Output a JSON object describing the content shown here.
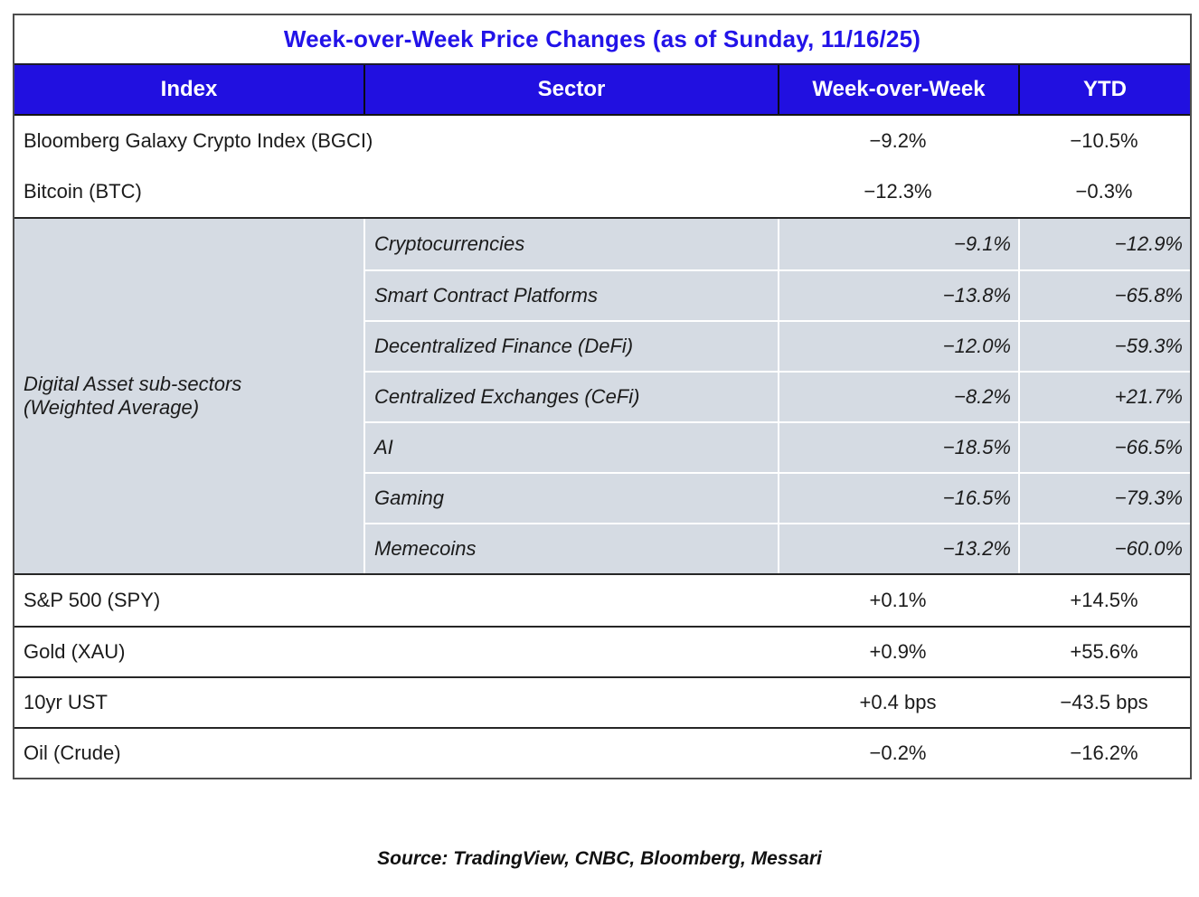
{
  "title": "Week-over-Week Price Changes (as of Sunday, 11/16/25)",
  "columns": [
    "Index",
    "Sector",
    "Week-over-Week",
    "YTD"
  ],
  "groups": {
    "top": [
      {
        "index": "Bloomberg Galaxy Crypto Index (BGCI)",
        "wow": "−9.2%",
        "ytd": "−10.5%"
      },
      {
        "index": "Bitcoin (BTC)",
        "wow": "−12.3%",
        "ytd": "−0.3%"
      }
    ],
    "digital": {
      "index_label": "Digital Asset sub-sectors\n(Weighted Average)",
      "rows": [
        {
          "sector": "Cryptocurrencies",
          "wow": "−9.1%",
          "ytd": "−12.9%"
        },
        {
          "sector": "Smart Contract Platforms",
          "wow": "−13.8%",
          "ytd": "−65.8%"
        },
        {
          "sector": "Decentralized Finance (DeFi)",
          "wow": "−12.0%",
          "ytd": "−59.3%"
        },
        {
          "sector": "Centralized Exchanges (CeFi)",
          "wow": "−8.2%",
          "ytd": "+21.7%"
        },
        {
          "sector": "AI",
          "wow": "−18.5%",
          "ytd": "−66.5%"
        },
        {
          "sector": "Gaming",
          "wow": "−16.5%",
          "ytd": "−79.3%"
        },
        {
          "sector": "Memecoins",
          "wow": "−13.2%",
          "ytd": "−60.0%"
        }
      ]
    },
    "bottom": [
      {
        "index": "S&P 500 (SPY)",
        "wow": "+0.1%",
        "ytd": "+14.5%"
      },
      {
        "index": "Gold (XAU)",
        "wow": "+0.9%",
        "ytd": "+55.6%"
      },
      {
        "index": "10yr UST",
        "wow": "+0.4 bps",
        "ytd": "−43.5 bps"
      },
      {
        "index": "Oil (Crude)",
        "wow": "−0.2%",
        "ytd": "−16.2%"
      }
    ]
  },
  "source": "Source: TradingView, CNBC, Bloomberg, Messari",
  "colors": {
    "header_bg": "#2110e0",
    "title_text": "#2213e8",
    "subsection_bg": "#d5dbe3",
    "outer_border": "#4d4d4d",
    "row_divider": "#262626",
    "subsection_divider": "#ffffff"
  },
  "chart_data": {
    "type": "table",
    "title": "Week-over-Week Price Changes (as of Sunday, 11/16/25)",
    "columns": [
      "Index",
      "Sector",
      "Week-over-Week",
      "YTD"
    ],
    "rows": [
      {
        "index": "Bloomberg Galaxy Crypto Index (BGCI)",
        "sector": "",
        "week_over_week": "−9.2%",
        "ytd": "−10.5%"
      },
      {
        "index": "Bitcoin (BTC)",
        "sector": "",
        "week_over_week": "−12.3%",
        "ytd": "−0.3%"
      },
      {
        "index": "Digital Asset sub-sectors (Weighted Average)",
        "sector": "Cryptocurrencies",
        "week_over_week": "−9.1%",
        "ytd": "−12.9%"
      },
      {
        "index": "Digital Asset sub-sectors (Weighted Average)",
        "sector": "Smart Contract Platforms",
        "week_over_week": "−13.8%",
        "ytd": "−65.8%"
      },
      {
        "index": "Digital Asset sub-sectors (Weighted Average)",
        "sector": "Decentralized Finance (DeFi)",
        "week_over_week": "−12.0%",
        "ytd": "−59.3%"
      },
      {
        "index": "Digital Asset sub-sectors (Weighted Average)",
        "sector": "Centralized Exchanges (CeFi)",
        "week_over_week": "−8.2%",
        "ytd": "+21.7%"
      },
      {
        "index": "Digital Asset sub-sectors (Weighted Average)",
        "sector": "AI",
        "week_over_week": "−18.5%",
        "ytd": "−66.5%"
      },
      {
        "index": "Digital Asset sub-sectors (Weighted Average)",
        "sector": "Gaming",
        "week_over_week": "−16.5%",
        "ytd": "−79.3%"
      },
      {
        "index": "Digital Asset sub-sectors (Weighted Average)",
        "sector": "Memecoins",
        "week_over_week": "−13.2%",
        "ytd": "−60.0%"
      },
      {
        "index": "S&P 500 (SPY)",
        "sector": "",
        "week_over_week": "+0.1%",
        "ytd": "+14.5%"
      },
      {
        "index": "Gold (XAU)",
        "sector": "",
        "week_over_week": "+0.9%",
        "ytd": "+55.6%"
      },
      {
        "index": "10yr UST",
        "sector": "",
        "week_over_week": "+0.4 bps",
        "ytd": "−43.5 bps"
      },
      {
        "index": "Oil (Crude)",
        "sector": "",
        "week_over_week": "−0.2%",
        "ytd": "−16.2%"
      }
    ],
    "notes": "Source: TradingView, CNBC, Bloomberg, Messari"
  }
}
